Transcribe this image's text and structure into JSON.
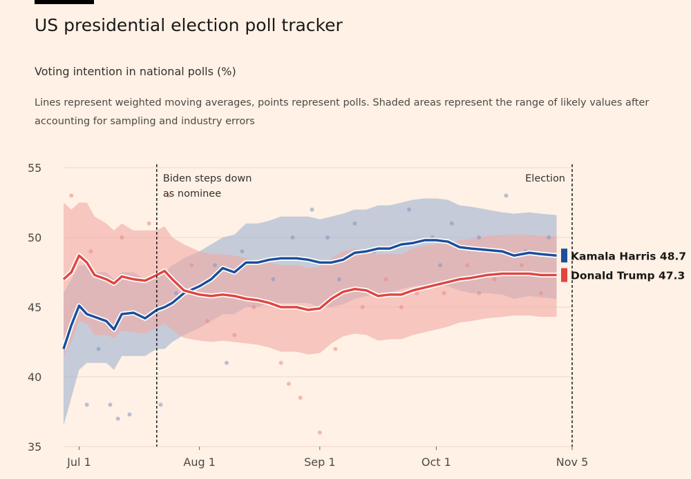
{
  "chart_data": {
    "type": "line",
    "title": "US presidential election poll tracker",
    "subtitle": "Voting intention in national polls (%)",
    "note": "Lines represent weighted moving averages, points represent polls. Shaded areas represent the range of likely values after accounting for sampling and industry errors",
    "x": [
      179,
      181,
      183,
      185,
      187,
      190,
      192,
      194,
      197,
      200,
      203,
      205,
      207,
      210,
      214,
      217,
      220,
      223,
      226,
      229,
      232,
      235,
      239,
      242,
      245,
      248,
      251,
      254,
      257,
      260,
      263,
      266,
      269,
      272,
      275,
      278,
      281,
      284,
      288,
      292,
      295,
      299,
      302,
      306
    ],
    "xlim": [
      179,
      310
    ],
    "xticks": [
      {
        "value": 183,
        "label": "Jul 1"
      },
      {
        "value": 214,
        "label": "Aug 1"
      },
      {
        "value": 245,
        "label": "Sep 1"
      },
      {
        "value": 275,
        "label": "Oct 1"
      },
      {
        "value": 310,
        "label": "Nov 5"
      }
    ],
    "ylim": [
      35,
      55
    ],
    "yticks": [
      35,
      40,
      45,
      50,
      55
    ],
    "grid": true,
    "series": [
      {
        "name": "Kamala Harris",
        "color": "#1b4e9b",
        "band_color": "#9fb2cf",
        "dot_color": "#7d96bf",
        "values": [
          42,
          43.7,
          45.1,
          44.5,
          44.3,
          44.0,
          43.4,
          44.5,
          44.6,
          44.2,
          44.8,
          45.0,
          45.3,
          46.0,
          46.5,
          47.0,
          47.8,
          47.5,
          48.2,
          48.2,
          48.4,
          48.5,
          48.5,
          48.4,
          48.2,
          48.2,
          48.4,
          48.9,
          49.0,
          49.2,
          49.2,
          49.5,
          49.6,
          49.8,
          49.8,
          49.7,
          49.3,
          49.2,
          49.1,
          49.0,
          48.7,
          48.9,
          48.8,
          48.7
        ],
        "upper": [
          46,
          47,
          48,
          48,
          47.5,
          47.5,
          47,
          47.5,
          47.5,
          47,
          47,
          47.5,
          48,
          48.5,
          49,
          49.5,
          50,
          50.2,
          51,
          51,
          51.2,
          51.5,
          51.5,
          51.5,
          51.3,
          51.5,
          51.7,
          52,
          52,
          52.3,
          52.3,
          52.5,
          52.7,
          52.8,
          52.8,
          52.7,
          52.3,
          52.2,
          52,
          51.8,
          51.7,
          51.8,
          51.7,
          51.6
        ],
        "lower": [
          36.5,
          38.5,
          40.5,
          41,
          41,
          41,
          40.5,
          41.5,
          41.5,
          41.5,
          42,
          42,
          42.5,
          43,
          43.5,
          44,
          44.5,
          44.5,
          45,
          45,
          45.3,
          45.3,
          45.3,
          45.3,
          45,
          45,
          45.2,
          45.6,
          45.8,
          46,
          46,
          46.3,
          46.5,
          46.6,
          46.6,
          46.5,
          46.2,
          46,
          46,
          45.9,
          45.6,
          45.8,
          45.7,
          45.6
        ],
        "polls": {
          "x": [
            185,
            191,
            193,
            196,
            188,
            204,
            218,
            225,
            233,
            238,
            247,
            254,
            259,
            268,
            274,
            279,
            286,
            293,
            298,
            304,
            221,
            250,
            276,
            208,
            243
          ],
          "values": [
            38,
            38,
            37,
            37.3,
            42,
            38,
            48,
            49,
            47,
            50,
            50,
            51,
            49,
            52,
            50,
            51,
            50,
            53,
            49,
            50,
            41,
            47,
            48,
            46,
            52
          ]
        }
      },
      {
        "name": "Donald Trump",
        "color": "#e0453f",
        "band_color": "#f0aaa5",
        "dot_color": "#e88a84",
        "values": [
          47.0,
          47.5,
          48.7,
          48.2,
          47.3,
          47.0,
          46.7,
          47.2,
          47.0,
          46.9,
          47.3,
          47.6,
          47.0,
          46.2,
          45.9,
          45.8,
          45.9,
          45.8,
          45.6,
          45.5,
          45.3,
          45.0,
          45.0,
          44.8,
          44.9,
          45.6,
          46.1,
          46.3,
          46.2,
          45.8,
          45.9,
          45.9,
          46.2,
          46.4,
          46.6,
          46.8,
          47.0,
          47.1,
          47.3,
          47.4,
          47.4,
          47.4,
          47.3,
          47.3
        ],
        "upper": [
          52.5,
          52,
          52.5,
          52.5,
          51.5,
          51,
          50.5,
          51,
          50.5,
          50.5,
          50.5,
          50.8,
          50,
          49.5,
          49,
          48.8,
          48.8,
          48.7,
          48.5,
          48.3,
          48.2,
          48,
          48,
          47.8,
          47.9,
          48.5,
          49,
          49.2,
          49,
          48.8,
          48.8,
          48.8,
          49.2,
          49.4,
          49.5,
          49.6,
          49.8,
          49.9,
          50.1,
          50.2,
          50.2,
          50.2,
          50.1,
          50.1
        ],
        "lower": [
          41.5,
          42.5,
          44,
          43.8,
          43,
          43,
          42.8,
          43.3,
          43.2,
          43.1,
          43.5,
          43.8,
          43.4,
          42.8,
          42.6,
          42.5,
          42.6,
          42.5,
          42.4,
          42.3,
          42.1,
          41.8,
          41.8,
          41.6,
          41.7,
          42.4,
          42.9,
          43.1,
          43,
          42.6,
          42.7,
          42.7,
          43,
          43.2,
          43.4,
          43.6,
          43.9,
          44,
          44.2,
          44.3,
          44.4,
          44.4,
          44.3,
          44.3
        ],
        "polls": {
          "x": [
            181,
            186,
            194,
            201,
            206,
            216,
            223,
            228,
            235,
            237,
            245,
            249,
            256,
            262,
            270,
            277,
            283,
            290,
            297,
            302,
            240,
            190,
            266,
            286,
            212
          ],
          "values": [
            53,
            49,
            50,
            51,
            53,
            44,
            43,
            45,
            41,
            39.5,
            36,
            42,
            45,
            47,
            46,
            46,
            48,
            47,
            48,
            46,
            38.5,
            47,
            45,
            46,
            48
          ]
        }
      }
    ],
    "annotations": [
      {
        "lines": [
          "Biden steps down",
          "as nominee"
        ],
        "x": 203,
        "side": "right"
      },
      {
        "lines": [
          "Election"
        ],
        "x": 310,
        "side": "left"
      }
    ]
  }
}
